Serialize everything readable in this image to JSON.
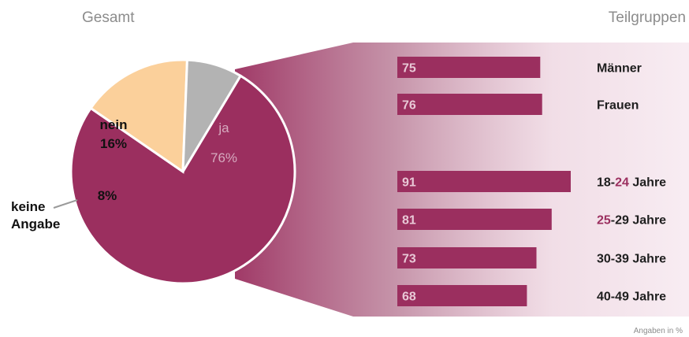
{
  "headers": {
    "left": "Gesamt",
    "right": "Teilgruppen"
  },
  "note": "Angaben in %",
  "chart_data": [
    {
      "type": "pie",
      "title": "Gesamt",
      "slices": [
        {
          "label": "ja",
          "value": 76,
          "display": "76%",
          "color": "#9b2f5f"
        },
        {
          "label": "nein",
          "value": 16,
          "display": "16%",
          "color": "#fbd09b"
        },
        {
          "label": "keine Angabe",
          "value": 8,
          "display": "8%",
          "color": "#b3b3b3"
        }
      ]
    },
    {
      "type": "bar",
      "title": "Teilgruppen",
      "orientation": "horizontal",
      "color": "#9b2f5f",
      "highlight_color": "#9b2f5f",
      "categories": [
        "Männer",
        "Frauen",
        "18-24 Jahre",
        "25-29 Jahre",
        "30-39 Jahre",
        "40-49 Jahre"
      ],
      "values": [
        75,
        76,
        91,
        81,
        73,
        68
      ],
      "label_parts": [
        [
          [
            "Männer",
            false
          ]
        ],
        [
          [
            "Frauen",
            false
          ]
        ],
        [
          [
            "18-",
            false
          ],
          [
            "24",
            true
          ],
          [
            " Jahre",
            false
          ]
        ],
        [
          [
            "25",
            true
          ],
          [
            "-29 Jahre",
            false
          ]
        ],
        [
          [
            "30-39 Jahre",
            false
          ]
        ],
        [
          [
            "40-49 Jahre",
            false
          ]
        ]
      ]
    }
  ]
}
